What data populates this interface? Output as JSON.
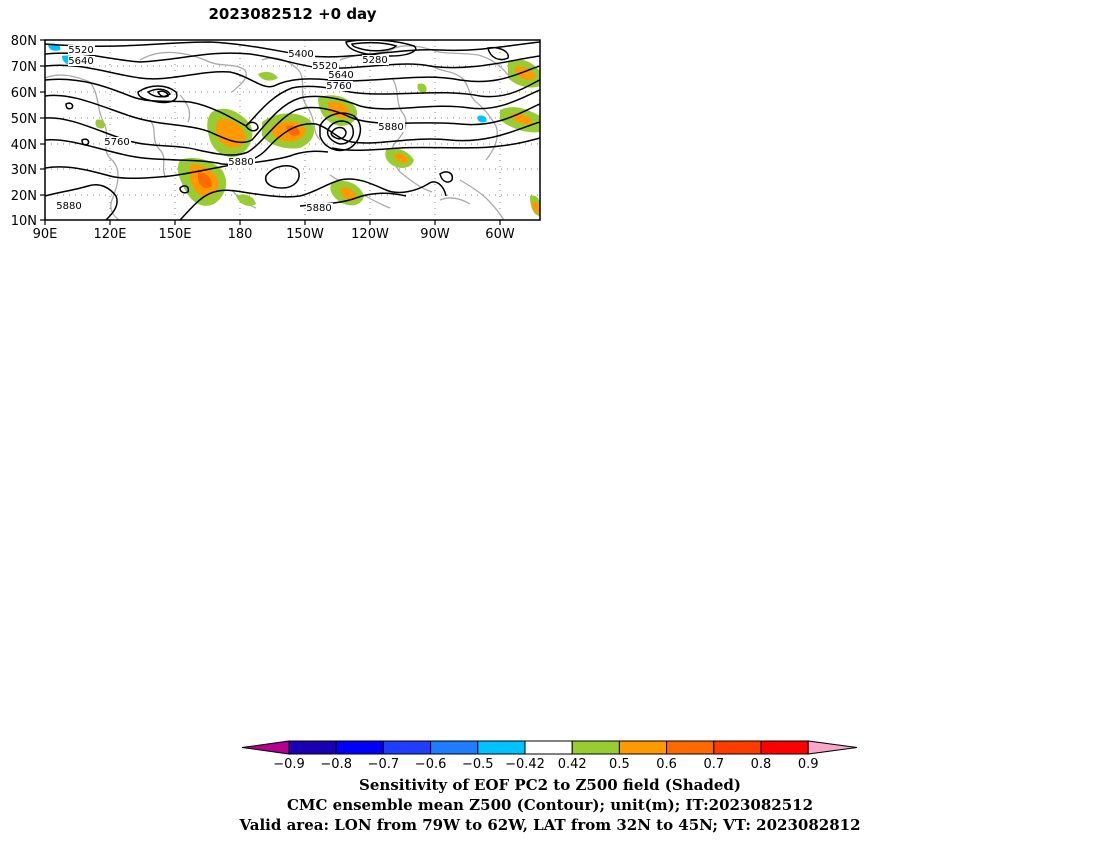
{
  "title": "2023082512 +0 day",
  "map": {
    "lat_labels": [
      "80N",
      "70N",
      "60N",
      "50N",
      "40N",
      "30N",
      "20N",
      "10N"
    ],
    "lon_labels": [
      "90E",
      "120E",
      "150E",
      "180",
      "150W",
      "120W",
      "90W",
      "60W"
    ],
    "contour_labels": [
      {
        "text": "5520",
        "id": "c5520a"
      },
      {
        "text": "5640",
        "id": "c5640a"
      },
      {
        "text": "5400",
        "id": "c5400"
      },
      {
        "text": "5280",
        "id": "c5280"
      },
      {
        "text": "5520",
        "id": "c5520b"
      },
      {
        "text": "5640",
        "id": "c5640b"
      },
      {
        "text": "5760",
        "id": "c5760a"
      },
      {
        "text": "5760",
        "id": "c5760b"
      },
      {
        "text": "5880",
        "id": "c5880a"
      },
      {
        "text": "5880",
        "id": "c5880b"
      },
      {
        "text": "5880",
        "id": "c5880c"
      },
      {
        "text": "5880",
        "id": "c5880d"
      }
    ]
  },
  "colorbar": {
    "boundaries": [
      "-0.9",
      "-0.8",
      "-0.7",
      "-0.6",
      "-0.5",
      "-0.42",
      "0.42",
      "0.5",
      "0.6",
      "0.7",
      "0.8",
      "0.9"
    ],
    "low_extend_color": "#b5008f",
    "high_extend_color": "#f9a6c9",
    "colors": [
      "#1a00b3",
      "#0000ff",
      "#1f3dff",
      "#1d7cff",
      "#00c2ff",
      "#ffffff",
      "#99cc33",
      "#ff9900",
      "#ff6a00",
      "#ff3c00",
      "#ff0000"
    ]
  },
  "captions": [
    "Sensitivity of EOF PC2 to Z500 field (Shaded)",
    "CMC ensemble mean Z500 (Contour); unit(m); IT:2023082512",
    "Valid area: LON from 79W to 62W, LAT from 32N to 45N; VT: 2023082812"
  ]
}
